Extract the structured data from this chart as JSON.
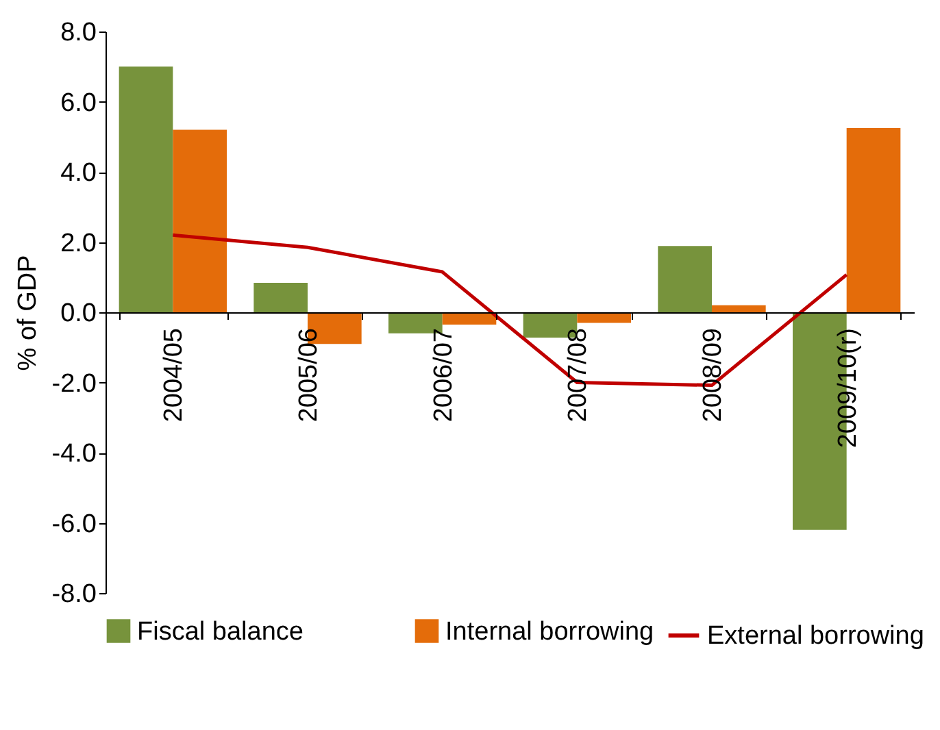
{
  "chart_data": {
    "type": "bar",
    "ylabel": "% of GDP",
    "categories": [
      "2004/05",
      "2005/06",
      "2006/07",
      "2007/08",
      "2008/09",
      "2009/10(r)"
    ],
    "series": [
      {
        "name": "Fiscal balance",
        "color": "#77933c",
        "values": [
          7.0,
          0.84,
          -0.6,
          -0.72,
          1.89,
          -6.2
        ]
      },
      {
        "name": "Internal borrowing",
        "color": "#e46c0a",
        "values": [
          5.2,
          -0.9,
          -0.35,
          -0.3,
          0.2,
          5.25
        ]
      },
      {
        "name": "External borrowing",
        "type": "line",
        "color": "#c00000",
        "values": [
          2.2,
          1.85,
          1.15,
          -2.0,
          -2.08,
          1.07
        ]
      }
    ],
    "ylim": [
      -8,
      8
    ],
    "yticks": [
      {
        "value": -8,
        "label": "-8.0"
      },
      {
        "value": -6,
        "label": "-6.0"
      },
      {
        "value": -4,
        "label": "-4.0"
      },
      {
        "value": -2,
        "label": "-2.0"
      },
      {
        "value": 0,
        "label": "0.0"
      },
      {
        "value": 2,
        "label": "2.0"
      },
      {
        "value": 4,
        "label": "4.0"
      },
      {
        "value": 6,
        "label": "6.0"
      },
      {
        "value": 8,
        "label": "8.0"
      }
    ],
    "grid": false,
    "legend": "bottom",
    "marker": "none"
  }
}
